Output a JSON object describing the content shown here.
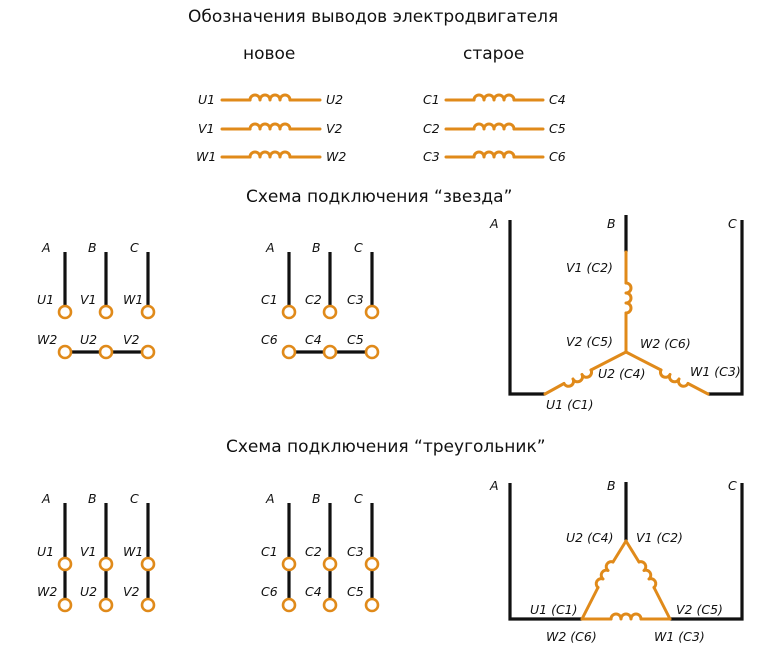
{
  "titles": {
    "main": "Обозначения выводов электродвигателя",
    "new": "новое",
    "old": "старое",
    "star": "Схема подключения “звезда”",
    "delta": "Схема подключения “треугольник”"
  },
  "legend": {
    "new": [
      [
        "U1",
        "U2"
      ],
      [
        "V1",
        "V2"
      ],
      [
        "W1",
        "W2"
      ]
    ],
    "old": [
      [
        "C1",
        "C4"
      ],
      [
        "C2",
        "C5"
      ],
      [
        "C3",
        "C6"
      ]
    ]
  },
  "phases": [
    "A",
    "B",
    "C"
  ],
  "star": {
    "new": {
      "top": [
        "U1",
        "V1",
        "W1"
      ],
      "bottom": [
        "W2",
        "U2",
        "V2"
      ]
    },
    "old": {
      "top": [
        "C1",
        "C2",
        "C3"
      ],
      "bottom": [
        "C6",
        "C4",
        "C5"
      ]
    },
    "detail": {
      "b_end": "V1 (C2)",
      "v_center": "V2 (C5)",
      "w_center": "W2 (C6)",
      "u_center": "U2 (C4)",
      "w_end": "W1 (C3)",
      "u_end": "U1 (C1)"
    }
  },
  "delta": {
    "new": {
      "top": [
        "U1",
        "V1",
        "W1"
      ],
      "bottom": [
        "W2",
        "U2",
        "V2"
      ]
    },
    "old": {
      "top": [
        "C1",
        "C2",
        "C3"
      ],
      "bottom": [
        "C6",
        "C4",
        "C5"
      ]
    },
    "detail": {
      "top_left": "U2 (C4)",
      "top_right": "V1 (C2)",
      "left": "U1 (C1)",
      "right": "V2 (C5)",
      "bottom_left": "W2 (C6)",
      "bottom_right": "W1 (C3)"
    }
  },
  "colors": {
    "winding": "#e08a1a",
    "wire": "#111111"
  }
}
